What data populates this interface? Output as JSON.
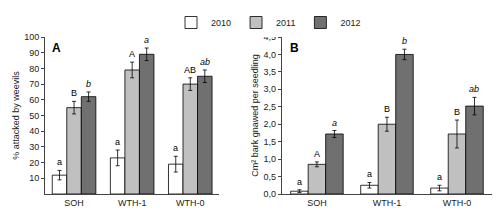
{
  "chart_data": [
    {
      "type": "bar",
      "title": "A",
      "categories": [
        "SOH",
        "WTH-1",
        "WTH-0"
      ],
      "series": [
        {
          "name": "2010",
          "color": "#ffffff",
          "values": [
            12,
            23,
            19
          ],
          "errors": [
            3,
            5,
            5
          ],
          "annotations": [
            "a",
            "a",
            "a"
          ]
        },
        {
          "name": "2011",
          "color": "#c0c0c0",
          "values": [
            55,
            79,
            70
          ],
          "errors": [
            4,
            5,
            4
          ],
          "annotations": [
            "B",
            "A",
            "AB"
          ]
        },
        {
          "name": "2012",
          "color": "#707070",
          "values": [
            62,
            89,
            75
          ],
          "errors": [
            3,
            4,
            4
          ],
          "annotations": [
            "b",
            "a",
            "ab"
          ]
        }
      ],
      "ylabel": "% attacked by weevils",
      "ylim": [
        0,
        100
      ],
      "yticks": [
        10,
        20,
        30,
        40,
        50,
        60,
        70,
        80,
        90,
        100
      ],
      "grid": false,
      "legend": "top"
    },
    {
      "type": "bar",
      "title": "B",
      "categories": [
        "SOH",
        "WTH-1",
        "WTH-0"
      ],
      "series": [
        {
          "name": "2010",
          "color": "#ffffff",
          "values": [
            0.08,
            0.25,
            0.17
          ],
          "errors": [
            0.04,
            0.08,
            0.08
          ],
          "annotations": [
            "a",
            "a",
            "a"
          ]
        },
        {
          "name": "2011",
          "color": "#c0c0c0",
          "values": [
            0.85,
            2.0,
            1.72
          ],
          "errors": [
            0.07,
            0.2,
            0.4
          ],
          "annotations": [
            "A",
            "B",
            "B"
          ]
        },
        {
          "name": "2012",
          "color": "#707070",
          "values": [
            1.72,
            4.0,
            2.52
          ],
          "errors": [
            0.1,
            0.15,
            0.25
          ],
          "annotations": [
            "a",
            "b",
            "ab"
          ]
        }
      ],
      "ylabel": "Cm² bark gnawed per seedling",
      "ylim": [
        0,
        4.5
      ],
      "yticks": [
        {
          "value": 0.0,
          "label": "0,0"
        },
        {
          "value": 0.5,
          "label": "0,5"
        },
        {
          "value": 1.0,
          "label": "1,0"
        },
        {
          "value": 1.5,
          "label": "1,5"
        },
        {
          "value": 2.0,
          "label": "2,0"
        },
        {
          "value": 2.5,
          "label": "2,5"
        },
        {
          "value": 3.0,
          "label": "3,0"
        },
        {
          "value": 3.5,
          "label": "3,5"
        },
        {
          "value": 4.0,
          "label": "4,0"
        },
        {
          "value": 4.5,
          "label": "4,5"
        }
      ],
      "grid": false
    }
  ]
}
